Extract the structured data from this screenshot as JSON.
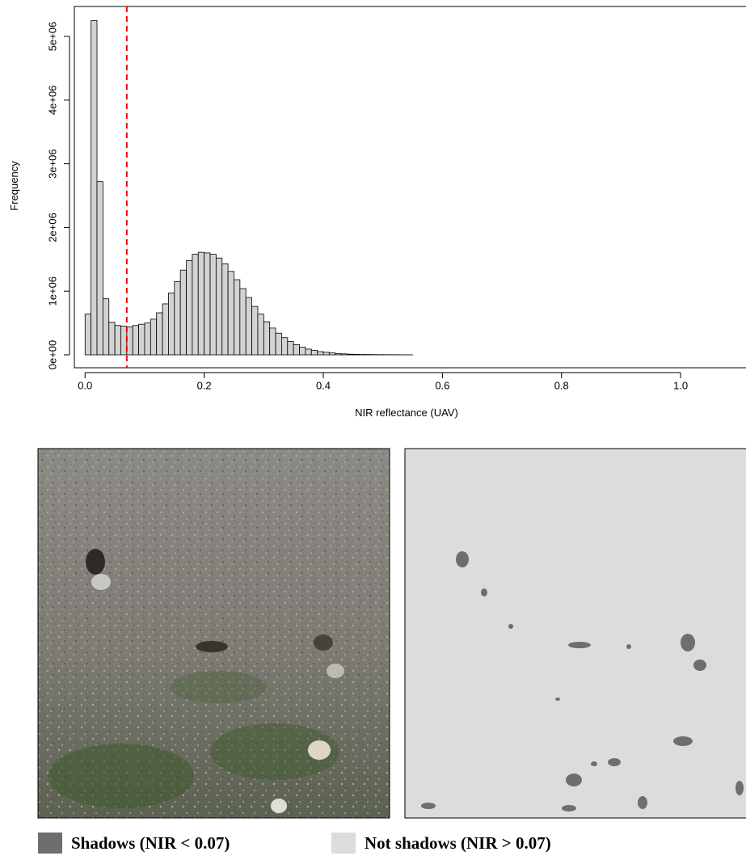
{
  "chart_data": {
    "type": "histogram",
    "x_label": "NIR reflectance (UAV)",
    "y_label": "Frequency",
    "bins": [
      0,
      0.01,
      0.02,
      0.03,
      0.04,
      0.05,
      0.06,
      0.07,
      0.08,
      0.09,
      0.1,
      0.11,
      0.12,
      0.13,
      0.14,
      0.15,
      0.16,
      0.17,
      0.18,
      0.19,
      0.2,
      0.21,
      0.22,
      0.23,
      0.24,
      0.25,
      0.26,
      0.27,
      0.28,
      0.29,
      0.3,
      0.31,
      0.32,
      0.33,
      0.34,
      0.35,
      0.36,
      0.37,
      0.38,
      0.39,
      0.4,
      0.41,
      0.42,
      0.43,
      0.44,
      0.45,
      0.46,
      0.47,
      0.48,
      0.49,
      0.5,
      0.51,
      0.52,
      0.53,
      0.54,
      0.55,
      0.56,
      0.57,
      0.58,
      0.59,
      0.6,
      0.61,
      0.62,
      0.63,
      0.64,
      0.65,
      0.66,
      0.67,
      0.68,
      0.69,
      0.7,
      0.71,
      0.72,
      0.73,
      0.74,
      0.75,
      0.76,
      0.77,
      0.78,
      0.79,
      0.8,
      0.81,
      0.82,
      0.83,
      0.84,
      0.85,
      0.86,
      0.87,
      0.88,
      0.89,
      0.9,
      0.91,
      0.92,
      0.93,
      0.94,
      0.95,
      0.96,
      0.97,
      0.98,
      0.99,
      1,
      1.01,
      1.02,
      1.03,
      1.04,
      1.05,
      1.06,
      1.07,
      1.08,
      1.09
    ],
    "values": [
      640000,
      5250000,
      2720000,
      880000,
      510000,
      460000,
      450000,
      440000,
      460000,
      480000,
      500000,
      560000,
      660000,
      800000,
      970000,
      1150000,
      1330000,
      1480000,
      1580000,
      1610000,
      1600000,
      1580000,
      1520000,
      1430000,
      1310000,
      1180000,
      1040000,
      900000,
      760000,
      640000,
      520000,
      420000,
      340000,
      270000,
      210000,
      160000,
      120000,
      90000,
      70000,
      50000,
      40000,
      30000,
      20000,
      15000,
      10000,
      8000,
      6000,
      5000,
      4000,
      3000,
      2500,
      2000,
      1500,
      1000,
      800,
      0,
      0,
      0,
      0,
      0,
      0,
      0,
      0,
      0,
      0,
      0,
      0,
      0,
      0,
      0,
      0,
      0,
      0,
      0,
      0,
      0,
      0,
      0,
      0,
      0,
      0,
      0,
      0,
      0,
      0,
      0,
      0,
      0,
      0,
      0,
      0,
      0,
      0,
      0,
      0,
      0,
      0,
      0,
      0,
      0,
      0,
      0,
      0,
      0,
      0,
      0,
      0,
      0,
      0
    ],
    "color": "#d3d3d3",
    "threshold": 0.07,
    "threshold_color": "#ff0000",
    "xlim": [
      -0.018,
      1.122
    ],
    "ylim": [
      -203000,
      5470000
    ],
    "xticks": [
      {
        "value": 0,
        "label": "0.0"
      },
      0.2,
      0.4,
      0.6,
      0.8,
      {
        "value": 1,
        "label": "1.0"
      }
    ],
    "yticks": [
      {
        "value": 0,
        "label": "0e+00"
      },
      {
        "value": 1000000,
        "label": "1e+06"
      },
      {
        "value": 2000000,
        "label": "2e+06"
      },
      {
        "value": 3000000,
        "label": "3e+06"
      },
      {
        "value": 4000000,
        "label": "4e+06"
      },
      {
        "value": 5000000,
        "label": "5e+06"
      }
    ]
  },
  "legend": {
    "items": [
      {
        "label": "Shadows (NIR < 0.07)",
        "color": "#6e6e6e"
      },
      {
        "label": "Not shadows (NIR > 0.07)",
        "color": "#dcdcdc"
      }
    ]
  }
}
